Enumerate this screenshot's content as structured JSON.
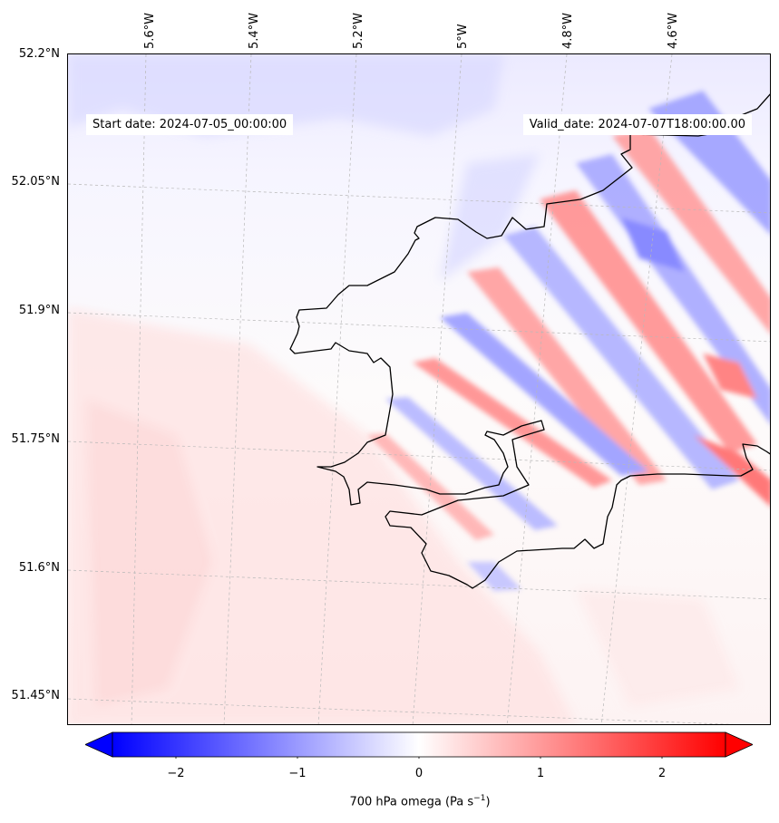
{
  "header": {
    "start_date": "Start date: 2024-07-05_00:00:00",
    "valid_date": "Valid_date: 2024-07-07T18:00:00.00"
  },
  "axes": {
    "lon_labels": [
      "5.6°W",
      "5.4°W",
      "5.2°W",
      "5°W",
      "4.8°W",
      "4.6°W"
    ],
    "lat_labels": [
      "52.2°N",
      "52.05°N",
      "51.9°N",
      "51.75°N",
      "51.6°N",
      "51.45°N"
    ]
  },
  "colorbar": {
    "ticks": [
      "−2",
      "−1",
      "0",
      "1",
      "2"
    ],
    "label_text": "700 hPa omega (Pa s",
    "label_sup": "−1",
    "label_close": ")",
    "min_color": "#0000ff",
    "mid_color": "#ffffff",
    "max_color": "#ff0000"
  },
  "map": {
    "field": "700 hPa omega",
    "units": "Pa s−1",
    "colormap": "bwr",
    "range": [
      -2.5,
      2.5
    ],
    "extend": "both",
    "coastline_color": "#000000",
    "gridlines": "dashed-light"
  }
}
